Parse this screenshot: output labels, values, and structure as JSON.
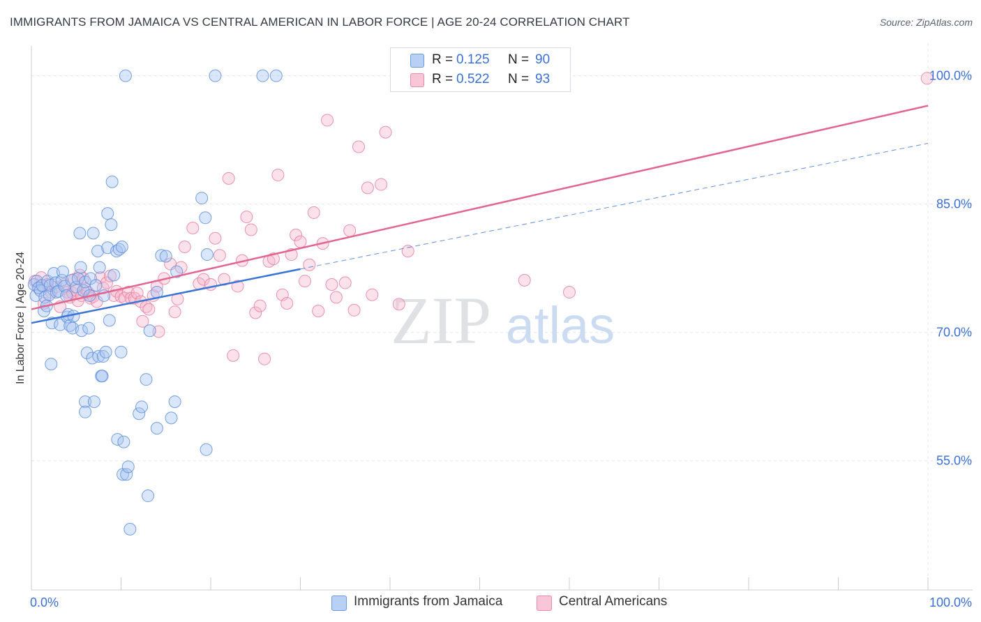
{
  "title": "IMMIGRANTS FROM JAMAICA VS CENTRAL AMERICAN IN LABOR FORCE | AGE 20-24 CORRELATION CHART",
  "source": "Source: ZipAtlas.com",
  "watermark": {
    "zip": "ZIP",
    "atlas": "atlas"
  },
  "legend_top": {
    "rows": [
      {
        "r_label": "R =",
        "r_value": "0.125",
        "n_label": "N =",
        "n_value": "90"
      },
      {
        "r_label": "R =",
        "r_value": "0.522",
        "n_label": "N =",
        "n_value": "93"
      }
    ]
  },
  "legend_bottom": {
    "items": [
      {
        "label": "Immigrants from Jamaica"
      },
      {
        "label": "Central Americans"
      }
    ]
  },
  "colors": {
    "jamaica_fill": "#a8c4f0",
    "jamaica_stroke": "#5f8fdc",
    "jamaica_line": "#3a74d4",
    "central_fill": "#f5b8cd",
    "central_stroke": "#e77fa2",
    "central_line": "#e2658f",
    "tick_label": "#3b6fd4",
    "grid": "#e3e6ea"
  },
  "chart_data": {
    "type": "scatter",
    "title": "IMMIGRANTS FROM JAMAICA VS CENTRAL AMERICAN IN LABOR FORCE | AGE 20-24 CORRELATION CHART",
    "xlabel": "",
    "ylabel": "In Labor Force | Age 20-24",
    "xlim": [
      0,
      100
    ],
    "ylim": [
      39.9,
      103.8
    ],
    "x_tick_labels": [
      "0.0%",
      "100.0%"
    ],
    "y_ticks": [
      55,
      70,
      85,
      100
    ],
    "y_tick_labels": [
      "55.0%",
      "70.0%",
      "85.0%",
      "100.0%"
    ],
    "grid": true,
    "legend_position": "top-center",
    "series": [
      {
        "name": "Immigrants from Jamaica",
        "R": 0.125,
        "N": 90,
        "trend": {
          "x": [
            0,
            30
          ],
          "y": [
            71.1,
            77.4
          ]
        },
        "trend_extension": {
          "x": [
            30,
            100
          ],
          "y": [
            77.4,
            92.1
          ]
        },
        "points": [
          [
            0.3,
            75.6
          ],
          [
            0.5,
            74.3
          ],
          [
            0.6,
            76.0
          ],
          [
            0.8,
            75.2
          ],
          [
            1.0,
            74.9
          ],
          [
            1.2,
            75.5
          ],
          [
            1.4,
            72.5
          ],
          [
            1.5,
            74.1
          ],
          [
            1.7,
            73.1
          ],
          [
            1.8,
            76.0
          ],
          [
            2.0,
            74.4
          ],
          [
            2.1,
            75.5
          ],
          [
            2.2,
            66.3
          ],
          [
            2.3,
            71.1
          ],
          [
            2.5,
            76.9
          ],
          [
            2.7,
            75.8
          ],
          [
            2.8,
            74.7
          ],
          [
            3.0,
            74.8
          ],
          [
            3.2,
            70.9
          ],
          [
            3.4,
            76.1
          ],
          [
            3.5,
            77.1
          ],
          [
            3.7,
            75.4
          ],
          [
            3.9,
            74.3
          ],
          [
            4.0,
            71.8
          ],
          [
            4.1,
            72.1
          ],
          [
            4.3,
            70.8
          ],
          [
            4.5,
            76.1
          ],
          [
            4.6,
            70.5
          ],
          [
            4.7,
            71.9
          ],
          [
            5.0,
            75.3
          ],
          [
            5.2,
            76.3
          ],
          [
            5.4,
            81.6
          ],
          [
            5.5,
            77.6
          ],
          [
            5.6,
            70.2
          ],
          [
            5.8,
            74.9
          ],
          [
            6.0,
            75.9
          ],
          [
            6.0,
            61.9
          ],
          [
            6.0,
            60.7
          ],
          [
            6.2,
            67.6
          ],
          [
            6.4,
            70.5
          ],
          [
            6.5,
            74.3
          ],
          [
            6.6,
            76.3
          ],
          [
            6.8,
            67.0
          ],
          [
            6.9,
            81.6
          ],
          [
            7.0,
            61.9
          ],
          [
            7.2,
            75.5
          ],
          [
            7.4,
            79.5
          ],
          [
            7.5,
            67.2
          ],
          [
            7.6,
            77.6
          ],
          [
            7.8,
            64.9
          ],
          [
            7.9,
            64.9
          ],
          [
            8.0,
            67.2
          ],
          [
            8.1,
            74.3
          ],
          [
            8.3,
            67.7
          ],
          [
            8.5,
            83.9
          ],
          [
            8.5,
            79.9
          ],
          [
            8.7,
            71.4
          ],
          [
            8.9,
            82.6
          ],
          [
            9.0,
            87.6
          ],
          [
            9.2,
            76.7
          ],
          [
            9.5,
            79.5
          ],
          [
            9.6,
            57.5
          ],
          [
            9.8,
            79.7
          ],
          [
            10.0,
            67.7
          ],
          [
            10.1,
            80.0
          ],
          [
            10.2,
            53.4
          ],
          [
            10.3,
            57.2
          ],
          [
            10.5,
            100.0
          ],
          [
            10.6,
            53.4
          ],
          [
            10.8,
            54.3
          ],
          [
            11.0,
            47.0
          ],
          [
            12.0,
            60.5
          ],
          [
            12.3,
            61.3
          ],
          [
            12.8,
            64.5
          ],
          [
            13.0,
            50.9
          ],
          [
            13.2,
            70.2
          ],
          [
            14.0,
            74.7
          ],
          [
            14.0,
            58.8
          ],
          [
            14.5,
            79.0
          ],
          [
            15.0,
            78.9
          ],
          [
            15.6,
            60.0
          ],
          [
            16.0,
            61.9
          ],
          [
            16.2,
            77.1
          ],
          [
            19.0,
            85.7
          ],
          [
            19.4,
            83.4
          ],
          [
            19.5,
            56.3
          ],
          [
            19.6,
            79.1
          ],
          [
            20.5,
            100.0
          ],
          [
            25.8,
            100.0
          ],
          [
            27.3,
            100.0
          ]
        ]
      },
      {
        "name": "Central Americans",
        "R": 0.522,
        "N": 93,
        "trend": {
          "x": [
            0,
            100
          ],
          "y": [
            72.7,
            96.5
          ]
        },
        "points": [
          [
            0.4,
            76.0
          ],
          [
            0.8,
            75.2
          ],
          [
            1.1,
            76.4
          ],
          [
            1.4,
            73.4
          ],
          [
            1.8,
            75.6
          ],
          [
            2.2,
            74.7
          ],
          [
            2.7,
            75.3
          ],
          [
            3.2,
            73.0
          ],
          [
            3.6,
            75.6
          ],
          [
            4.0,
            74.7
          ],
          [
            4.3,
            74.1
          ],
          [
            4.6,
            74.6
          ],
          [
            4.8,
            76.2
          ],
          [
            5.0,
            74.9
          ],
          [
            5.2,
            73.7
          ],
          [
            5.4,
            76.7
          ],
          [
            5.6,
            74.3
          ],
          [
            5.8,
            76.3
          ],
          [
            6.0,
            75.1
          ],
          [
            6.3,
            74.7
          ],
          [
            6.6,
            74.0
          ],
          [
            6.9,
            74.2
          ],
          [
            7.3,
            73.6
          ],
          [
            7.7,
            76.4
          ],
          [
            8.0,
            75.2
          ],
          [
            8.4,
            75.8
          ],
          [
            8.8,
            76.6
          ],
          [
            9.2,
            74.3
          ],
          [
            9.5,
            74.8
          ],
          [
            10.0,
            74.2
          ],
          [
            10.4,
            74.0
          ],
          [
            10.8,
            74.7
          ],
          [
            11.1,
            74.0
          ],
          [
            11.5,
            74.0
          ],
          [
            11.8,
            74.6
          ],
          [
            12.2,
            73.6
          ],
          [
            12.4,
            71.3
          ],
          [
            12.8,
            73.0
          ],
          [
            13.1,
            72.7
          ],
          [
            13.6,
            74.3
          ],
          [
            14.0,
            75.4
          ],
          [
            14.2,
            70.1
          ],
          [
            14.8,
            76.3
          ],
          [
            15.5,
            78.0
          ],
          [
            16.0,
            72.4
          ],
          [
            16.3,
            73.9
          ],
          [
            16.7,
            77.6
          ],
          [
            17.1,
            80.0
          ],
          [
            18.0,
            82.2
          ],
          [
            18.7,
            75.7
          ],
          [
            19.2,
            76.2
          ],
          [
            20.0,
            75.6
          ],
          [
            20.5,
            81.0
          ],
          [
            21.0,
            79.0
          ],
          [
            21.5,
            76.2
          ],
          [
            22.0,
            88.0
          ],
          [
            22.5,
            67.3
          ],
          [
            23.0,
            75.4
          ],
          [
            23.5,
            78.4
          ],
          [
            24.0,
            83.5
          ],
          [
            24.5,
            82.0
          ],
          [
            25.0,
            72.3
          ],
          [
            25.5,
            73.1
          ],
          [
            26.0,
            66.9
          ],
          [
            26.5,
            78.3
          ],
          [
            27.0,
            78.6
          ],
          [
            27.5,
            88.4
          ],
          [
            28.0,
            74.4
          ],
          [
            28.5,
            73.4
          ],
          [
            29.0,
            79.1
          ],
          [
            29.5,
            81.4
          ],
          [
            30.0,
            80.6
          ],
          [
            30.5,
            76.0
          ],
          [
            31.0,
            77.9
          ],
          [
            31.5,
            84.0
          ],
          [
            32.0,
            72.5
          ],
          [
            32.5,
            80.4
          ],
          [
            33.0,
            94.8
          ],
          [
            33.5,
            75.6
          ],
          [
            34.0,
            74.1
          ],
          [
            35.0,
            75.8
          ],
          [
            35.5,
            81.9
          ],
          [
            36.0,
            72.6
          ],
          [
            36.5,
            91.7
          ],
          [
            37.5,
            86.9
          ],
          [
            38.0,
            74.4
          ],
          [
            39.0,
            87.3
          ],
          [
            39.5,
            93.4
          ],
          [
            41.0,
            73.3
          ],
          [
            42.0,
            79.5
          ],
          [
            55.0,
            76.1
          ],
          [
            60.0,
            74.7
          ],
          [
            99.9,
            99.7
          ]
        ]
      }
    ]
  }
}
